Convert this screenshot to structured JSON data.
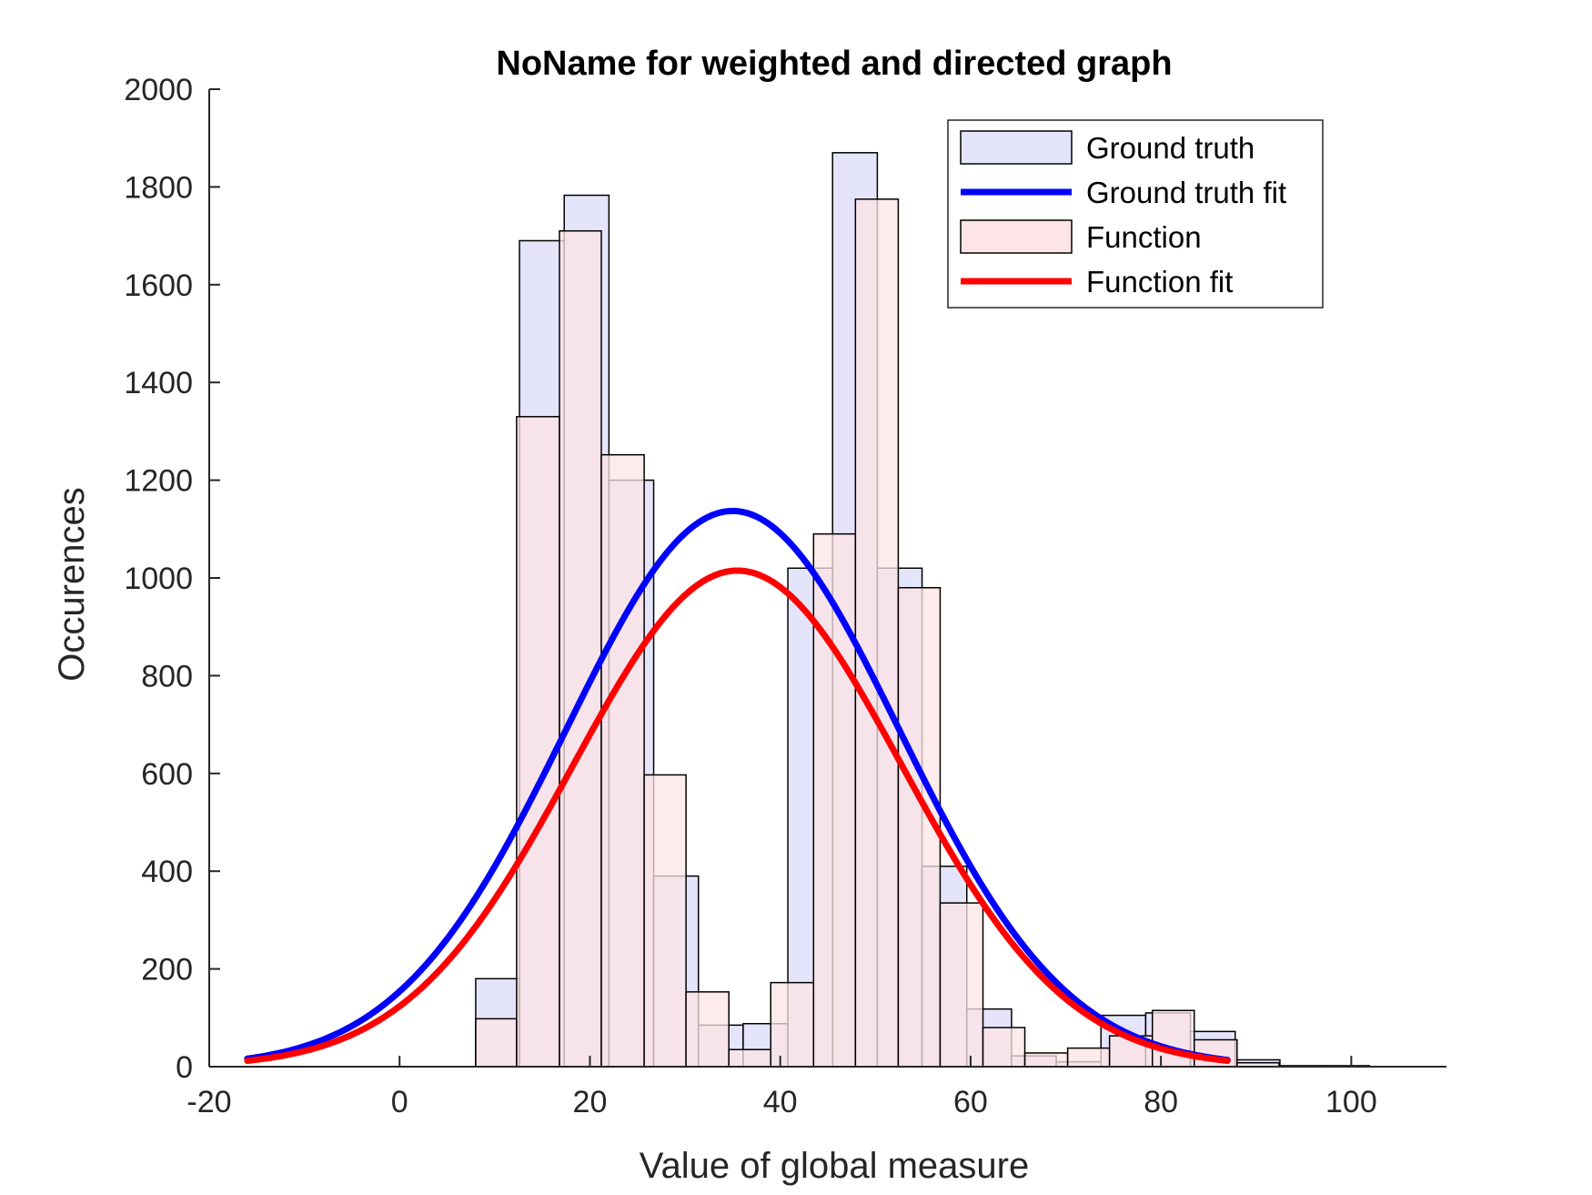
{
  "chart_data": {
    "type": "bar",
    "title": "NoName for weighted and directed graph",
    "xlabel": "Value of global measure",
    "ylabel": "Occurences",
    "xlim": [
      -20,
      110
    ],
    "ylim": [
      0,
      2000
    ],
    "xticks": [
      -20,
      0,
      20,
      40,
      60,
      80,
      100
    ],
    "yticks": [
      0,
      200,
      400,
      600,
      800,
      1000,
      1200,
      1400,
      1600,
      1800,
      2000
    ],
    "grid": false,
    "legend_position": "top-right",
    "legend": [
      {
        "label": "Ground truth",
        "kind": "patch",
        "fill": "#e4e4fb",
        "edge": "#000000"
      },
      {
        "label": "Ground truth fit",
        "kind": "line",
        "color": "#0000ff"
      },
      {
        "label": "Function",
        "kind": "patch",
        "fill": "#fde4e6",
        "edge": "#000000"
      },
      {
        "label": "Function fit",
        "kind": "line",
        "color": "#ff0000"
      }
    ],
    "histograms": [
      {
        "name": "Ground truth",
        "fill": "#e4e4fb",
        "bins": [
          {
            "x0": 8.0,
            "x1": 12.6,
            "count": 180
          },
          {
            "x0": 12.6,
            "x1": 17.3,
            "count": 1690
          },
          {
            "x0": 17.3,
            "x1": 22.0,
            "count": 1783
          },
          {
            "x0": 22.0,
            "x1": 26.7,
            "count": 1200
          },
          {
            "x0": 26.7,
            "x1": 31.4,
            "count": 390
          },
          {
            "x0": 31.4,
            "x1": 36.1,
            "count": 85
          },
          {
            "x0": 36.1,
            "x1": 40.8,
            "count": 88
          },
          {
            "x0": 40.8,
            "x1": 45.5,
            "count": 1020
          },
          {
            "x0": 45.5,
            "x1": 50.2,
            "count": 1870
          },
          {
            "x0": 50.2,
            "x1": 54.9,
            "count": 1020
          },
          {
            "x0": 54.9,
            "x1": 59.6,
            "count": 410
          },
          {
            "x0": 59.6,
            "x1": 64.3,
            "count": 118
          },
          {
            "x0": 64.3,
            "x1": 69.0,
            "count": 22
          },
          {
            "x0": 69.0,
            "x1": 73.7,
            "count": 10
          },
          {
            "x0": 73.7,
            "x1": 78.4,
            "count": 105
          },
          {
            "x0": 78.4,
            "x1": 83.1,
            "count": 110
          },
          {
            "x0": 83.1,
            "x1": 87.8,
            "count": 72
          },
          {
            "x0": 87.8,
            "x1": 92.5,
            "count": 14
          },
          {
            "x0": 92.5,
            "x1": 97.2,
            "count": 2
          },
          {
            "x0": 97.2,
            "x1": 101.9,
            "count": 2
          }
        ]
      },
      {
        "name": "Function",
        "fill": "#fde4e6",
        "bins": [
          {
            "x0": 8.0,
            "x1": 12.3,
            "count": 98
          },
          {
            "x0": 12.3,
            "x1": 16.8,
            "count": 1330
          },
          {
            "x0": 16.8,
            "x1": 21.2,
            "count": 1710
          },
          {
            "x0": 21.2,
            "x1": 25.7,
            "count": 1252
          },
          {
            "x0": 25.7,
            "x1": 30.1,
            "count": 597
          },
          {
            "x0": 30.1,
            "x1": 34.6,
            "count": 153
          },
          {
            "x0": 34.6,
            "x1": 39.0,
            "count": 35
          },
          {
            "x0": 39.0,
            "x1": 43.5,
            "count": 172
          },
          {
            "x0": 43.5,
            "x1": 47.9,
            "count": 1090
          },
          {
            "x0": 47.9,
            "x1": 52.4,
            "count": 1775
          },
          {
            "x0": 52.4,
            "x1": 56.8,
            "count": 980
          },
          {
            "x0": 56.8,
            "x1": 61.3,
            "count": 335
          },
          {
            "x0": 61.3,
            "x1": 65.7,
            "count": 80
          },
          {
            "x0": 65.7,
            "x1": 70.2,
            "count": 28
          },
          {
            "x0": 70.2,
            "x1": 74.6,
            "count": 38
          },
          {
            "x0": 74.6,
            "x1": 79.1,
            "count": 63
          },
          {
            "x0": 79.1,
            "x1": 83.5,
            "count": 115
          },
          {
            "x0": 83.5,
            "x1": 88.0,
            "count": 55
          },
          {
            "x0": 88.0,
            "x1": 92.4,
            "count": 8
          }
        ]
      }
    ],
    "fits": [
      {
        "name": "Ground truth fit",
        "color": "#0000ff",
        "mean": 35.0,
        "sd": 17.5,
        "peak": 1137,
        "x_range": [
          -16,
          87
        ]
      },
      {
        "name": "Function fit",
        "color": "#ff0000",
        "mean": 35.5,
        "sd": 17.3,
        "peak": 1015,
        "x_range": [
          -16,
          87
        ]
      }
    ]
  }
}
